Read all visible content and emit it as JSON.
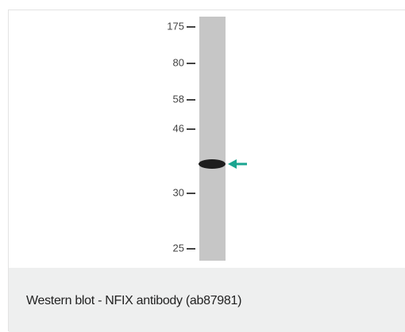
{
  "figure": {
    "markers": [
      "175",
      "80",
      "58",
      "46",
      "30",
      "25"
    ],
    "caption": "Western blot - NFIX antibody (ab87981)"
  }
}
